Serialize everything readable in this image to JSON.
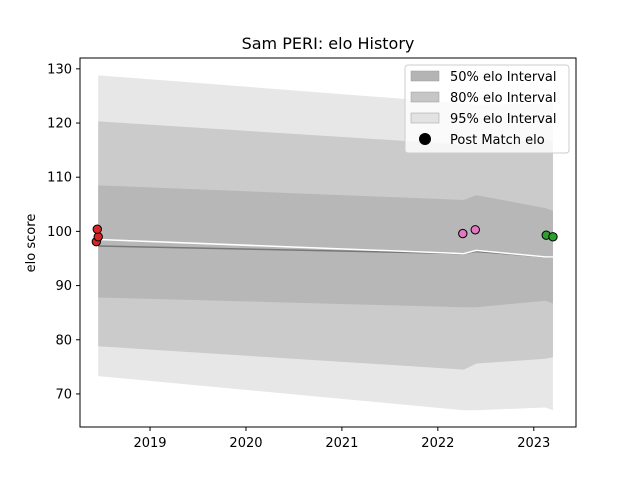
{
  "chart_data": {
    "type": "area",
    "title": "Sam PERI: elo History",
    "xlabel": "",
    "ylabel": "elo score",
    "xlim": [
      2018.27,
      2023.44
    ],
    "ylim": [
      63.9,
      132.0
    ],
    "xticks": [
      2019,
      2020,
      2021,
      2022,
      2023
    ],
    "xtick_labels": [
      "2019",
      "2020",
      "2021",
      "2022",
      "2023"
    ],
    "yticks": [
      70,
      80,
      90,
      100,
      110,
      120,
      130
    ],
    "ytick_labels": [
      "70",
      "80",
      "90",
      "100",
      "110",
      "120",
      "130"
    ],
    "grid": false,
    "legend_position": "top-right",
    "legend": [
      {
        "key": "band50",
        "label": "50% elo Interval"
      },
      {
        "key": "band80",
        "label": "80% elo Interval"
      },
      {
        "key": "band95",
        "label": "95% elo Interval"
      },
      {
        "key": "points",
        "label": "Post Match elo"
      }
    ],
    "bands": {
      "x": [
        2018.46,
        2022.27,
        2022.4,
        2023.12,
        2023.2
      ],
      "mean": [
        97.3,
        95.9,
        96.3,
        95.3,
        95.3
      ],
      "band50": {
        "lower": [
          87.8,
          86.0,
          86.0,
          87.2,
          86.7
        ],
        "upper": [
          108.5,
          105.8,
          106.7,
          104.3,
          103.8
        ]
      },
      "band80": {
        "lower": [
          78.8,
          74.5,
          75.6,
          76.5,
          76.8
        ],
        "upper": [
          120.3,
          116.0,
          116.2,
          117.0,
          116.5
        ]
      },
      "band95": {
        "lower": [
          73.3,
          67.0,
          67.0,
          67.5,
          67.0
        ],
        "upper": [
          128.8,
          123.6,
          123.4,
          123.6,
          123.8
        ]
      }
    },
    "white_line": {
      "x": [
        2018.46,
        2022.27,
        2022.4,
        2023.12,
        2023.2
      ],
      "y": [
        98.5,
        95.9,
        96.5,
        95.3,
        95.3
      ]
    },
    "points": [
      {
        "x": 2018.44,
        "y": 98.1,
        "color": "#d62728"
      },
      {
        "x": 2018.46,
        "y": 99.0,
        "color": "#d62728"
      },
      {
        "x": 2018.45,
        "y": 100.4,
        "color": "#d62728"
      },
      {
        "x": 2022.26,
        "y": 99.6,
        "color": "#e377c2"
      },
      {
        "x": 2022.39,
        "y": 100.3,
        "color": "#e377c2"
      },
      {
        "x": 2023.13,
        "y": 99.3,
        "color": "#2ca02c"
      },
      {
        "x": 2023.2,
        "y": 99.0,
        "color": "#2ca02c"
      }
    ],
    "colors": {
      "band50": "#b4b4b4",
      "band80": "#c6c6c6",
      "band95": "#e3e3e3",
      "mean_line": "#777777",
      "white_line": "#ffffff",
      "point_edge": "#000000",
      "legend_marker": "#000000"
    }
  }
}
